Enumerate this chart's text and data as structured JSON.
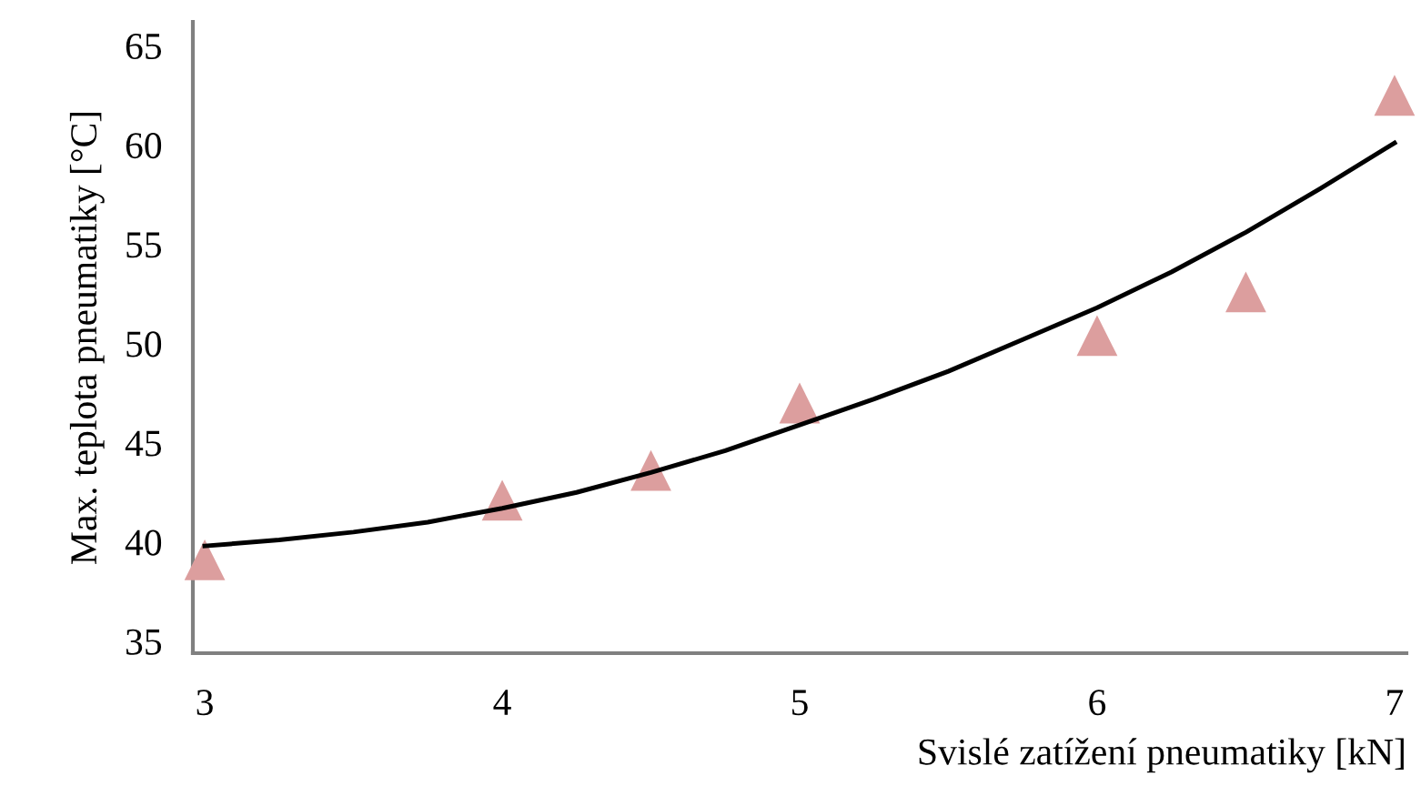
{
  "chart_data": {
    "type": "scatter",
    "xlabel": "Svislé zatížení pneumatiky [kN]",
    "ylabel": "Max. teplota pneumatiky [°C]",
    "xlim": [
      2.96,
      7.04
    ],
    "ylim": [
      34.4,
      66.2
    ],
    "xticks": [
      3,
      4,
      5,
      6,
      7
    ],
    "yticks": [
      35,
      40,
      45,
      50,
      55,
      60,
      65
    ],
    "grid": false,
    "legend": false,
    "series": [
      {
        "marker": "triangle",
        "color": "#dc9e9e",
        "x": [
          3.0,
          4.0,
          4.5,
          5.0,
          6.0,
          6.5,
          7.0
        ],
        "values": [
          39.1,
          42.1,
          43.6,
          47.0,
          50.4,
          52.6,
          62.5
        ]
      },
      {
        "type": "line",
        "marker": "none",
        "line_style": "solid",
        "color": "#000000",
        "x": [
          3,
          3.25,
          3.5,
          3.75,
          4,
          4.25,
          4.5,
          4.75,
          5,
          5.25,
          5.5,
          5.75,
          6,
          6.25,
          6.5,
          6.75,
          7
        ],
        "values": [
          39.8,
          40.1,
          40.5,
          41.0,
          41.7,
          42.5,
          43.5,
          44.6,
          45.9,
          47.2,
          48.6,
          50.2,
          51.8,
          53.6,
          55.6,
          57.8,
          60.1
        ]
      }
    ]
  }
}
